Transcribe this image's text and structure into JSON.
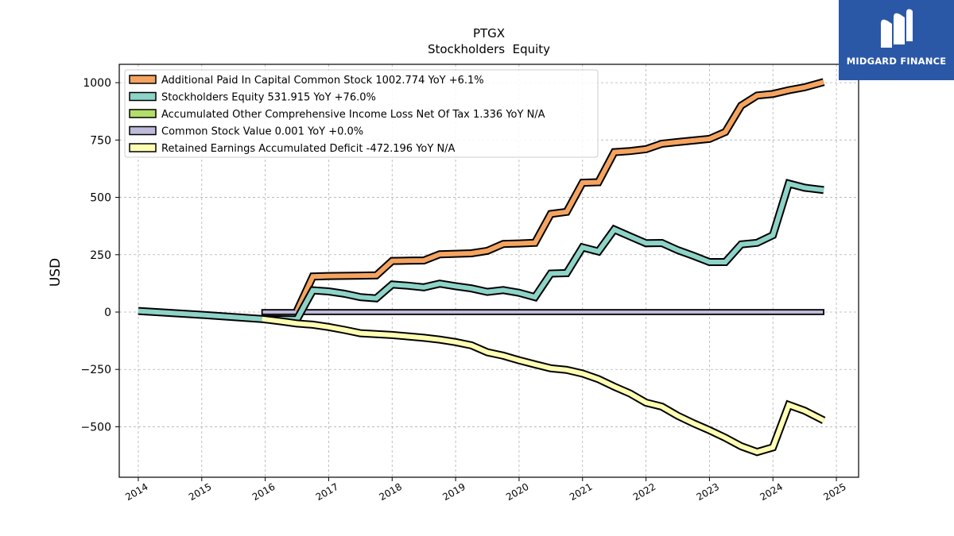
{
  "chart_data": {
    "type": "line",
    "title": "PTGX",
    "subtitle": "Stockholders  Equity",
    "ylabel": "USD",
    "xlabel": "",
    "ylim": [
      -720,
      1080
    ],
    "xlim": [
      2013.7,
      2025.35
    ],
    "yticks": [
      -500,
      -250,
      0,
      250,
      500,
      750,
      1000
    ],
    "ytick_labels": [
      "−500",
      "−250",
      "0",
      "250",
      "500",
      "750",
      "1000"
    ],
    "xticks": [
      2014,
      2015,
      2016,
      2017,
      2018,
      2019,
      2020,
      2021,
      2022,
      2023,
      2024,
      2025
    ],
    "xtick_labels": [
      "2014",
      "2015",
      "2016",
      "2017",
      "2018",
      "2019",
      "2020",
      "2021",
      "2022",
      "2023",
      "2024",
      "2025"
    ],
    "grid": true,
    "legend_position": "top-left",
    "series": [
      {
        "name": "Additional Paid In Capital Common Stock",
        "legend": "Additional Paid In Capital Common Stock  1002.774 YoY +6.1%",
        "color": "#f4a460",
        "x": [
          2016.5,
          2016.75,
          2017.0,
          2017.25,
          2017.5,
          2017.75,
          2018.0,
          2018.25,
          2018.5,
          2018.75,
          2019.0,
          2019.25,
          2019.5,
          2019.75,
          2020.0,
          2020.25,
          2020.5,
          2020.75,
          2021.0,
          2021.25,
          2021.5,
          2021.75,
          2022.0,
          2022.25,
          2022.5,
          2022.75,
          2023.0,
          2023.25,
          2023.5,
          2023.75,
          2024.0,
          2024.25,
          2024.5,
          2024.8
        ],
        "values": [
          5,
          155,
          157,
          158,
          159,
          160,
          223,
          224,
          225,
          252,
          254,
          256,
          267,
          297,
          299,
          302,
          428,
          437,
          564,
          566,
          697,
          702,
          710,
          734,
          741,
          748,
          755,
          785,
          900,
          944,
          951,
          967,
          980,
          1002.774
        ]
      },
      {
        "name": "Stockholders Equity",
        "legend": "Stockholders Equity  531.915 YoY +76.0%",
        "color": "#8dd3c7",
        "x": [
          2014.0,
          2015.0,
          2015.95,
          2016.5,
          2016.75,
          2017.0,
          2017.25,
          2017.5,
          2017.75,
          2018.0,
          2018.25,
          2018.5,
          2018.75,
          2019.0,
          2019.25,
          2019.5,
          2019.75,
          2020.0,
          2020.25,
          2020.5,
          2020.75,
          2021.0,
          2021.25,
          2021.5,
          2021.75,
          2022.0,
          2022.25,
          2022.5,
          2022.75,
          2023.0,
          2023.25,
          2023.5,
          2023.75,
          2024.0,
          2024.25,
          2024.5,
          2024.8
        ],
        "values": [
          5,
          -12,
          -30,
          -32,
          95,
          90,
          80,
          65,
          60,
          120,
          115,
          108,
          124,
          113,
          103,
          88,
          96,
          84,
          65,
          168,
          170,
          282,
          264,
          360,
          330,
          300,
          301,
          270,
          245,
          218,
          218,
          295,
          302,
          335,
          560,
          542,
          531.915
        ]
      },
      {
        "name": "Accumulated Other Comprehensive Income Loss Net Of Tax",
        "legend": "Accumulated Other Comprehensive Income Loss Net Of Tax  1.336 YoY N/A",
        "color": "#b3de69",
        "x": [
          2015.95,
          2024.8
        ],
        "values": [
          1.336,
          1.336
        ]
      },
      {
        "name": "Common Stock Value",
        "legend": "Common Stock Value  0.001 YoY +0.0%",
        "color": "#bebada",
        "x": [
          2015.95,
          2024.8
        ],
        "values": [
          0.001,
          0.001
        ]
      },
      {
        "name": "Retained Earnings Accumulated Deficit",
        "legend": "Retained Earnings Accumulated Deficit  -472.196 YoY N/A",
        "color": "#ffffb3",
        "x": [
          2015.95,
          2016.25,
          2016.5,
          2016.75,
          2017.0,
          2017.25,
          2017.5,
          2017.75,
          2018.0,
          2018.25,
          2018.5,
          2018.75,
          2019.0,
          2019.25,
          2019.5,
          2019.75,
          2020.0,
          2020.25,
          2020.5,
          2020.75,
          2021.0,
          2021.25,
          2021.5,
          2021.75,
          2022.0,
          2022.25,
          2022.5,
          2022.75,
          2023.0,
          2023.25,
          2023.5,
          2023.75,
          2024.0,
          2024.25,
          2024.5,
          2024.8
        ],
        "values": [
          -30,
          -40,
          -50,
          -55,
          -65,
          -78,
          -92,
          -96,
          -100,
          -106,
          -112,
          -120,
          -131,
          -145,
          -175,
          -190,
          -210,
          -228,
          -245,
          -252,
          -268,
          -292,
          -325,
          -355,
          -395,
          -412,
          -452,
          -485,
          -515,
          -548,
          -585,
          -610,
          -590,
          -405,
          -430,
          -472.196
        ]
      }
    ]
  },
  "logo": {
    "text": "MIDGARD FINANCE",
    "background": "#2b57a7"
  }
}
